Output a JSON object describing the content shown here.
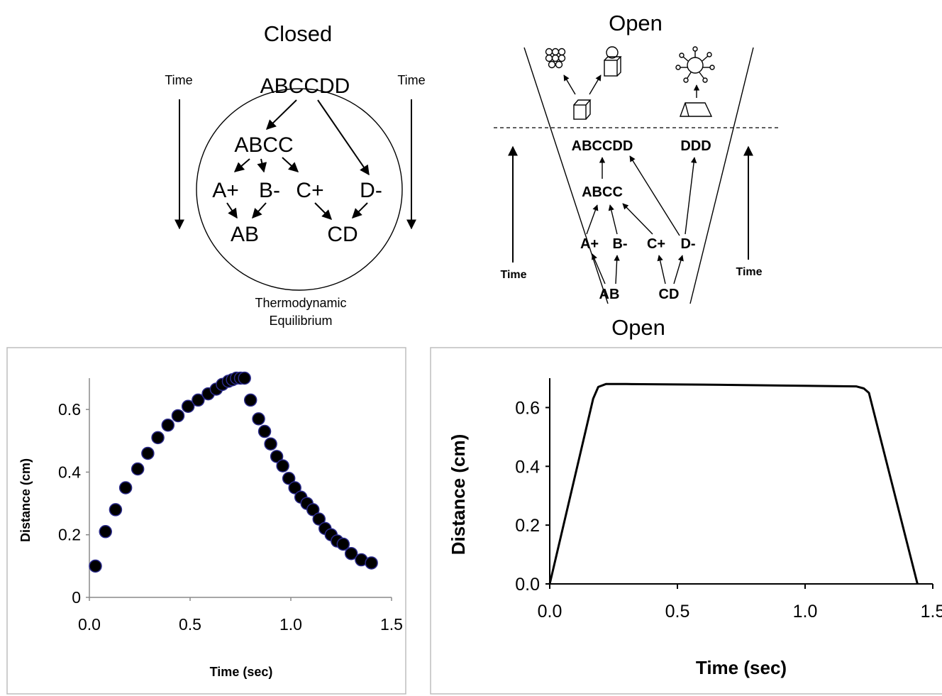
{
  "closed": {
    "title": "Closed",
    "time_left": "Time",
    "time_right": "Time",
    "nodes": {
      "abccdd": "ABCCDD",
      "abcc": "ABCC",
      "a_plus": "A+",
      "b_minus": "B-",
      "c_plus": "C+",
      "d_minus": "D-",
      "ab": "AB",
      "cd": "CD"
    },
    "caption_line1": "Thermodynamic",
    "caption_line2": "Equilibrium"
  },
  "open": {
    "title_top": "Open",
    "title_bottom": "Open",
    "time_left": "Time",
    "time_right": "Time",
    "nodes": {
      "abccdd": "ABCCDD",
      "ddd": "DDD",
      "abcc": "ABCC",
      "a_plus": "A+",
      "b_minus": "B-",
      "c_plus": "C+",
      "d_minus": "D-",
      "ab": "AB",
      "cd": "CD"
    }
  },
  "chart_data": [
    {
      "type": "scatter",
      "title": "",
      "xlabel": "Time (sec)",
      "ylabel": "Distance (cm)",
      "xlim": [
        0,
        1.5
      ],
      "ylim": [
        0,
        0.7
      ],
      "xticks": [
        "0.0",
        "0.5",
        "1.0",
        "1.5"
      ],
      "yticks": [
        "0",
        "0.2",
        "0.4",
        "0.6"
      ],
      "marker_color": "#000000",
      "marker_edge": "#2a2a8a",
      "x": [
        0.03,
        0.08,
        0.13,
        0.18,
        0.24,
        0.29,
        0.34,
        0.39,
        0.44,
        0.49,
        0.54,
        0.59,
        0.63,
        0.66,
        0.69,
        0.71,
        0.73,
        0.75,
        0.77,
        0.8,
        0.84,
        0.87,
        0.9,
        0.93,
        0.96,
        0.99,
        1.02,
        1.05,
        1.08,
        1.11,
        1.14,
        1.17,
        1.2,
        1.23,
        1.26,
        1.3,
        1.35,
        1.4
      ],
      "y": [
        0.1,
        0.21,
        0.28,
        0.35,
        0.41,
        0.46,
        0.51,
        0.55,
        0.58,
        0.61,
        0.63,
        0.65,
        0.665,
        0.68,
        0.69,
        0.695,
        0.7,
        0.7,
        0.7,
        0.63,
        0.57,
        0.53,
        0.49,
        0.45,
        0.42,
        0.38,
        0.35,
        0.32,
        0.3,
        0.28,
        0.25,
        0.22,
        0.2,
        0.18,
        0.17,
        0.14,
        0.12,
        0.11
      ]
    },
    {
      "type": "line",
      "title": "",
      "xlabel": "Time (sec)",
      "ylabel": "Distance (cm)",
      "xlim": [
        0,
        1.5
      ],
      "ylim": [
        0,
        0.7
      ],
      "xticks": [
        "0.0",
        "0.5",
        "1.0",
        "1.5"
      ],
      "yticks": [
        "0.0",
        "0.2",
        "0.4",
        "0.6"
      ],
      "line_color": "#000000",
      "x": [
        0.0,
        0.17,
        0.19,
        0.22,
        0.3,
        0.6,
        0.9,
        1.2,
        1.23,
        1.25,
        1.44
      ],
      "y": [
        0.0,
        0.63,
        0.67,
        0.68,
        0.68,
        0.678,
        0.675,
        0.672,
        0.665,
        0.65,
        0.0
      ]
    }
  ]
}
